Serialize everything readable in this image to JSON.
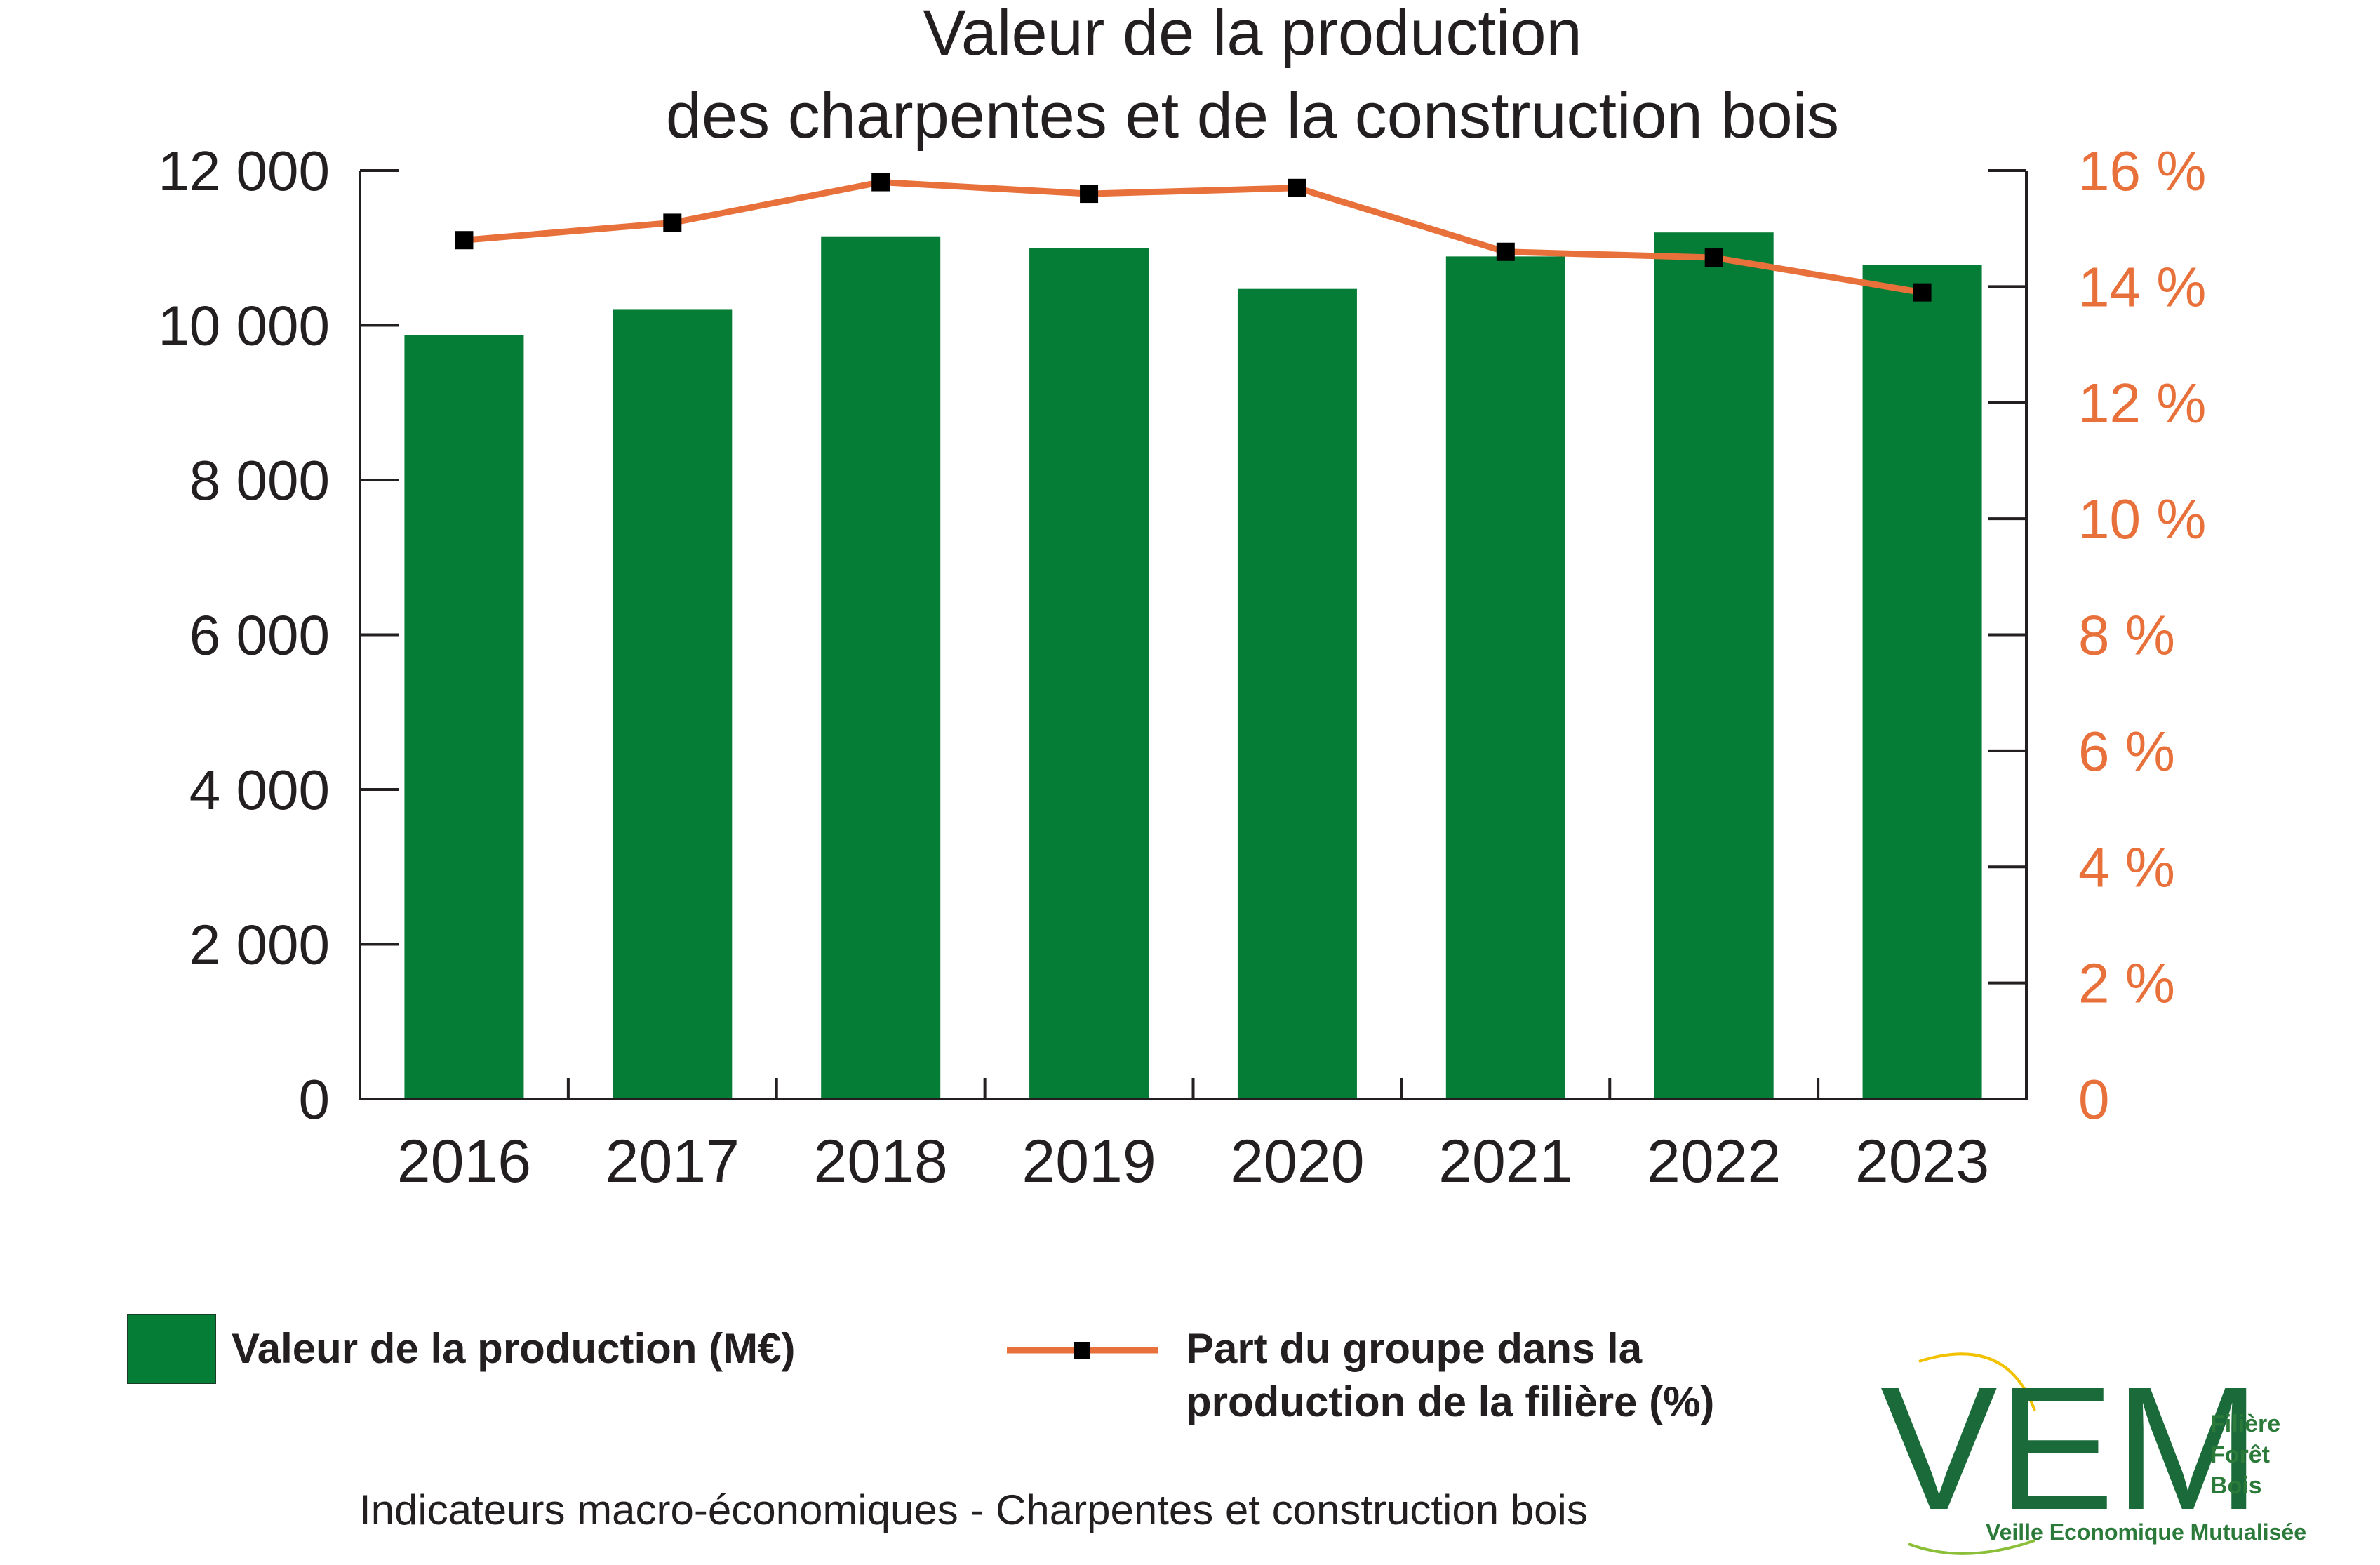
{
  "chart_data": {
    "type": "bar",
    "title": [
      "Valeur de la production",
      "des charpentes et de la construction bois"
    ],
    "categories": [
      "2016",
      "2017",
      "2018",
      "2019",
      "2020",
      "2021",
      "2022",
      "2023"
    ],
    "series": [
      {
        "name": "Valeur de la production (M€)",
        "type": "bar",
        "axis": "left",
        "color": "#067d37",
        "values": [
          9870,
          10200,
          11150,
          11000,
          10470,
          10890,
          11200,
          10780
        ]
      },
      {
        "name": "Part du groupe dans la production de la filière (%)",
        "name_lines": [
          "Part du groupe dans la",
          "production de la filière (%)"
        ],
        "type": "line",
        "axis": "right",
        "color": "#e8703a",
        "marker_color": "#000000",
        "values": [
          14.8,
          15.1,
          15.8,
          15.6,
          15.7,
          14.6,
          14.5,
          13.9
        ]
      }
    ],
    "y_left": {
      "ylim": [
        0,
        12000
      ],
      "ticks": [
        0,
        2000,
        4000,
        6000,
        8000,
        10000,
        12000
      ],
      "tick_labels": [
        "0",
        "2 000",
        "4 000",
        "6 000",
        "8 000",
        "10 000",
        "12 000"
      ]
    },
    "y_right": {
      "ylim": [
        0,
        16
      ],
      "ticks": [
        0,
        2,
        4,
        6,
        8,
        10,
        12,
        14,
        16
      ],
      "tick_labels": [
        "0",
        "2 %",
        "4 %",
        "6 %",
        "8 %",
        "10 %",
        "12 %",
        "14 %",
        "16 %"
      ],
      "color": "#e8703a"
    },
    "grid": false,
    "legend_position": "bottom-left"
  },
  "footer": "Indicateurs macro-économiques - Charpentes et construction bois",
  "logo": {
    "letters": "VEM",
    "side_lines": [
      "Filière",
      "Forêt",
      "Bois"
    ],
    "tagline": "Veille Economique Mutualisée"
  },
  "colors": {
    "text": "#231f20",
    "bar": "#067d37",
    "line": "#e8703a",
    "logo_green": "#1b6b3a"
  }
}
